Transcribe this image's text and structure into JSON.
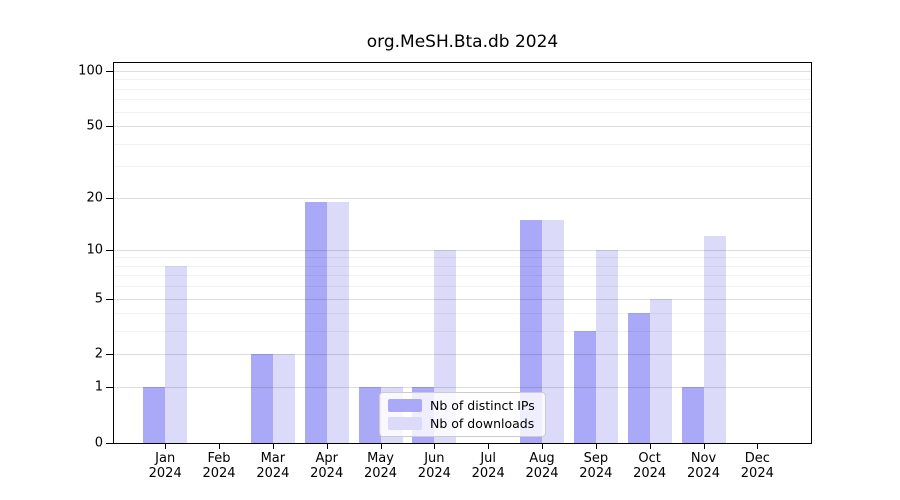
{
  "title": "org.MeSH.Bta.db 2024",
  "chart_data": {
    "type": "bar",
    "title": "org.MeSH.Bta.db 2024",
    "categories": [
      "Jan 2024",
      "Feb 2024",
      "Mar 2024",
      "Apr 2024",
      "May 2024",
      "Jun 2024",
      "Jul 2024",
      "Aug 2024",
      "Sep 2024",
      "Oct 2024",
      "Nov 2024",
      "Dec 2024"
    ],
    "x_axis": {
      "months": [
        "Jan",
        "Feb",
        "Mar",
        "Apr",
        "May",
        "Jun",
        "Jul",
        "Aug",
        "Sep",
        "Oct",
        "Nov",
        "Dec"
      ],
      "year": "2024"
    },
    "series": [
      {
        "name": "Nb of distinct IPs",
        "color": "#a9a9f8",
        "values": [
          1,
          0,
          2,
          19,
          1,
          1,
          0,
          15,
          3,
          4,
          1,
          0
        ]
      },
      {
        "name": "Nb of downloads",
        "color": "#dbdbf9",
        "values": [
          8,
          0,
          2,
          19,
          1,
          10,
          0,
          15,
          10,
          5,
          12,
          0
        ]
      }
    ],
    "y_axis": {
      "scale": "log1p",
      "tick_labels": [
        100,
        50,
        20,
        10,
        5,
        2,
        1,
        0
      ],
      "minor_gridlines": [
        3,
        4,
        6,
        7,
        8,
        9,
        30,
        40,
        60,
        70,
        80,
        90
      ],
      "ylim": [
        0,
        110
      ]
    },
    "grid": true,
    "legend_position": "inside-lower-center",
    "colors": {
      "distinct_ips": "#a9a9f8",
      "downloads": "#dbdbf9"
    }
  }
}
